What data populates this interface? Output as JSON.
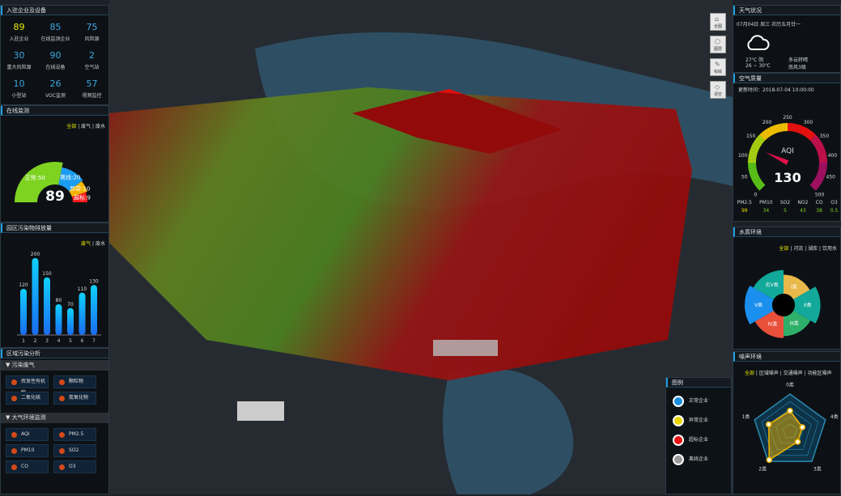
{
  "colors": {
    "accent": "#1ea0e0",
    "highlight": "#e8e800",
    "normal": "#7ed321",
    "offline": "#1a9cf0",
    "abnormal": "#f5b400",
    "exceed": "#ff1a1a"
  },
  "enterprise": {
    "title": "入驻企业及设备",
    "stats": [
      {
        "value": "89",
        "label": "入驻企业"
      },
      {
        "value": "85",
        "label": "在线监测企业"
      },
      {
        "value": "75",
        "label": "风险源"
      },
      {
        "value": "30",
        "label": "重大风险源"
      },
      {
        "value": "90",
        "label": "在线设备"
      },
      {
        "value": "2",
        "label": "空气站"
      },
      {
        "value": "10",
        "label": "小型站"
      },
      {
        "value": "26",
        "label": "VOC监测"
      },
      {
        "value": "57",
        "label": "视频监控"
      }
    ]
  },
  "online": {
    "title": "在线监测",
    "filters": [
      "全部",
      "废气",
      "废水"
    ],
    "total": "89",
    "segments": [
      {
        "label": "正常:50",
        "value": 50,
        "color": "#7ed321"
      },
      {
        "label": "离线:20",
        "value": 20,
        "color": "#1a9cf0"
      },
      {
        "label": "异常:10",
        "value": 10,
        "color": "#f5b400"
      },
      {
        "label": "超标:9",
        "value": 9,
        "color": "#ff1a1a"
      }
    ]
  },
  "emission": {
    "title": "园区污染物排放量",
    "filters": [
      "废气",
      "废水"
    ],
    "chart_data": {
      "type": "bar",
      "categories": [
        "1",
        "2",
        "3",
        "4",
        "5",
        "6",
        "7"
      ],
      "values": [
        120,
        200,
        150,
        80,
        70,
        110,
        130
      ],
      "ylim": [
        0,
        200
      ]
    }
  },
  "region": {
    "title": "区域污染分析",
    "groups": [
      {
        "label": "污染废气",
        "items": [
          "挥发性有机物",
          "颗粒物",
          "二氧化硫",
          "氮氧化物"
        ]
      },
      {
        "label": "大气环境监测",
        "items": [
          "AQI",
          "PM2.5",
          "PM10",
          "SO2",
          "CO",
          "O3"
        ]
      }
    ]
  },
  "toolbar": [
    {
      "label": "全图",
      "icon": "home-icon"
    },
    {
      "label": "图层",
      "icon": "layers-icon"
    },
    {
      "label": "标绘",
      "icon": "pen-icon"
    },
    {
      "label": "清空",
      "icon": "eraser-icon"
    }
  ],
  "legend": {
    "title": "图例",
    "items": [
      {
        "label": "正常企业",
        "color": "#1a8fe0"
      },
      {
        "label": "异常企业",
        "color": "#e8d800"
      },
      {
        "label": "超标企业",
        "color": "#e81010"
      },
      {
        "label": "离线企业",
        "color": "#9a9a9a"
      }
    ]
  },
  "weather": {
    "title": "天气状况",
    "date": "07月04日 周三 农历五月廿一",
    "temp": "27℃ 阴",
    "range": "26 ~ 30℃",
    "desc": "多云转晴",
    "wind": "南风3级",
    "icon": "cloud-icon"
  },
  "air": {
    "title": "空气质量",
    "updated": "更新时间：2018-07-04 10:00:00",
    "aqi_label": "AQI",
    "aqi": 130,
    "chart_data": {
      "type": "gauge",
      "min": 0,
      "max": 500,
      "value": 130,
      "ticks": [
        "0",
        "50",
        "100",
        "150",
        "200",
        "250",
        "300",
        "350",
        "400",
        "450",
        "500"
      ]
    },
    "pollutants": [
      {
        "name": "PM2.5",
        "value": "99",
        "color": "#e8e000"
      },
      {
        "name": "PM10",
        "value": "34",
        "color": "#7ed321"
      },
      {
        "name": "SO2",
        "value": "5",
        "color": "#7ed321"
      },
      {
        "name": "NO2",
        "value": "43",
        "color": "#7ed321"
      },
      {
        "name": "CO",
        "value": "38",
        "color": "#7ed321"
      },
      {
        "name": "O3",
        "value": "0.5",
        "color": "#7ed321"
      }
    ]
  },
  "water": {
    "title": "水质环境",
    "filters": [
      "全部",
      "河流",
      "湖库",
      "饮用水"
    ],
    "chart_data": {
      "type": "pie",
      "rose": true,
      "slices": [
        {
          "label": "I类",
          "value": 0.78,
          "color": "#e8b84a"
        },
        {
          "label": "II类",
          "value": 0.95,
          "color": "#12a89a"
        },
        {
          "label": "III类",
          "value": 0.8,
          "color": "#2fb06a"
        },
        {
          "label": "IV类",
          "value": 0.85,
          "color": "#e8503a"
        },
        {
          "label": "V类",
          "value": 1.0,
          "color": "#1a8fee"
        },
        {
          "label": "劣V类",
          "value": 0.9,
          "color": "#12a89a"
        }
      ]
    }
  },
  "noise": {
    "title": "噪声环境",
    "filters": [
      "全部",
      "区域噪声",
      "交通噪声",
      "功能区噪声"
    ],
    "chart_data": {
      "type": "radar",
      "axes": [
        "0类",
        "4类",
        "3类",
        "2类",
        "1类"
      ],
      "values": [
        0.55,
        0.35,
        0.35,
        0.95,
        0.6
      ],
      "max": 1
    }
  }
}
